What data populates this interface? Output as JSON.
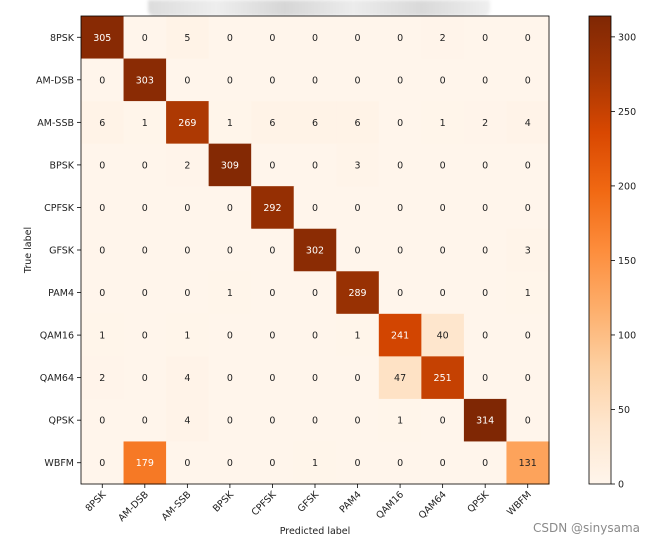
{
  "chart_data": {
    "type": "heatmap",
    "xlabel": "Predicted label",
    "ylabel": "True label",
    "labels": [
      "8PSK",
      "AM-DSB",
      "AM-SSB",
      "BPSK",
      "CPFSK",
      "GFSK",
      "PAM4",
      "QAM16",
      "QAM64",
      "QPSK",
      "WBFM"
    ],
    "matrix": [
      [
        305,
        0,
        5,
        0,
        0,
        0,
        0,
        0,
        2,
        0,
        0
      ],
      [
        0,
        303,
        0,
        0,
        0,
        0,
        0,
        0,
        0,
        0,
        0
      ],
      [
        6,
        1,
        269,
        1,
        6,
        6,
        6,
        0,
        1,
        2,
        4
      ],
      [
        0,
        0,
        2,
        309,
        0,
        0,
        3,
        0,
        0,
        0,
        0
      ],
      [
        0,
        0,
        0,
        0,
        292,
        0,
        0,
        0,
        0,
        0,
        0
      ],
      [
        0,
        0,
        0,
        0,
        0,
        302,
        0,
        0,
        0,
        0,
        3
      ],
      [
        0,
        0,
        0,
        1,
        0,
        0,
        289,
        0,
        0,
        0,
        1
      ],
      [
        1,
        0,
        1,
        0,
        0,
        0,
        1,
        241,
        40,
        0,
        0
      ],
      [
        2,
        0,
        4,
        0,
        0,
        0,
        0,
        47,
        251,
        0,
        0
      ],
      [
        0,
        0,
        4,
        0,
        0,
        0,
        0,
        1,
        0,
        314,
        0
      ],
      [
        0,
        179,
        0,
        0,
        0,
        1,
        0,
        0,
        0,
        0,
        131
      ]
    ],
    "colorbar": {
      "colormap": "Oranges",
      "range": [
        0,
        314
      ],
      "ticks": [
        0,
        50,
        100,
        150,
        200,
        250,
        300
      ]
    }
  },
  "watermark": "CSDN @sinysama"
}
